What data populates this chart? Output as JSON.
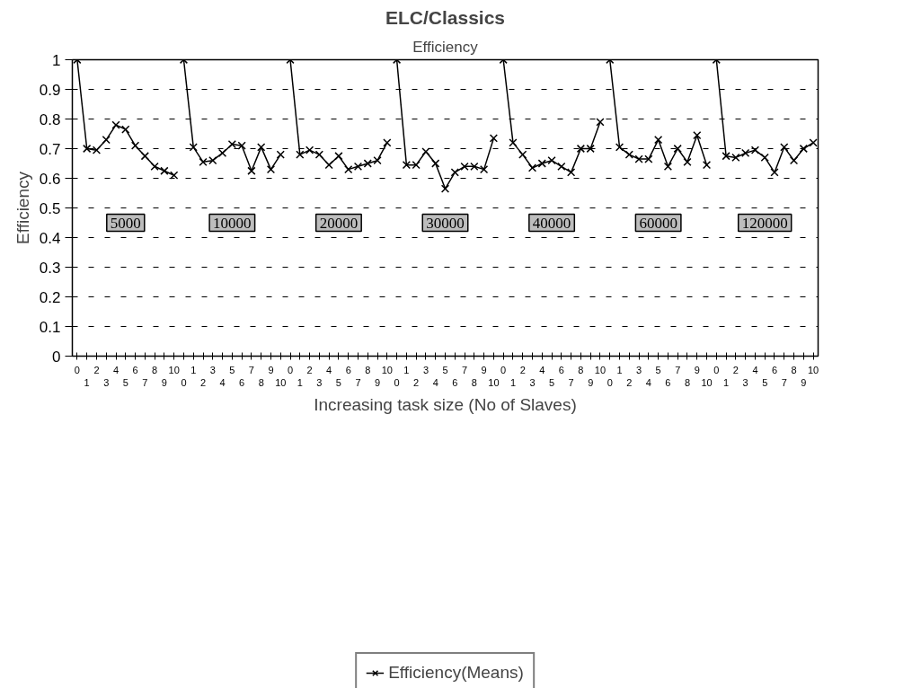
{
  "chart_data": {
    "type": "line",
    "title": "ELC/Classics",
    "subtitle": "Efficiency",
    "xlabel": "Increasing task size (No of Slaves)",
    "ylabel": "Efficiency",
    "categories": [
      "0",
      "1",
      "2",
      "3",
      "4",
      "5",
      "6",
      "7",
      "8",
      "9",
      "10",
      "0",
      "1",
      "2",
      "3",
      "4",
      "5",
      "6",
      "7",
      "8",
      "9",
      "10",
      "0",
      "1",
      "2",
      "3",
      "4",
      "5",
      "6",
      "7",
      "8",
      "9",
      "10",
      "0",
      "1",
      "2",
      "3",
      "4",
      "5",
      "6",
      "7",
      "8",
      "9",
      "10",
      "0",
      "1",
      "2",
      "3",
      "4",
      "5",
      "6",
      "7",
      "8",
      "9",
      "10",
      "0",
      "1",
      "2",
      "3",
      "4",
      "5",
      "6",
      "7",
      "8",
      "9",
      "10",
      "0",
      "1",
      "2",
      "3",
      "4",
      "5",
      "6",
      "7",
      "8",
      "9",
      "10"
    ],
    "series": [
      {
        "name": "Efficiency(Means)",
        "color": "#000000",
        "values": [
          1,
          0.7,
          0.695,
          0.73,
          0.78,
          0.765,
          0.71,
          0.675,
          0.64,
          0.625,
          0.61,
          null,
          null,
          null,
          null,
          null,
          null,
          null,
          null,
          null,
          null,
          null,
          null,
          null,
          null,
          null,
          null,
          null,
          null,
          null,
          null,
          null,
          null,
          null,
          null,
          null,
          null,
          null,
          null,
          null,
          null,
          null,
          null,
          null,
          null,
          null,
          null,
          null,
          null,
          null,
          null,
          null,
          null,
          null,
          null,
          null,
          null,
          null,
          null,
          null,
          null,
          null,
          null,
          null,
          null,
          null,
          null,
          null,
          null,
          null,
          null,
          null,
          null,
          null,
          null,
          null,
          null
        ]
      },
      {
        "color": "#000000",
        "values": [
          null,
          null,
          null,
          null,
          null,
          null,
          null,
          null,
          null,
          null,
          null,
          1,
          0.705,
          0.655,
          0.66,
          0.685,
          0.715,
          0.71,
          0.625,
          0.705,
          0.63,
          0.68,
          null,
          null,
          null,
          null,
          null,
          null,
          null,
          null,
          null,
          null,
          null,
          null,
          null,
          null,
          null,
          null,
          null,
          null,
          null,
          null,
          null,
          null,
          null,
          null,
          null,
          null,
          null,
          null,
          null,
          null,
          null,
          null,
          null,
          null,
          null,
          null,
          null,
          null,
          null,
          null,
          null,
          null,
          null,
          null,
          null,
          null,
          null,
          null,
          null,
          null,
          null,
          null,
          null,
          null,
          null
        ]
      },
      {
        "color": "#000000",
        "values": [
          null,
          null,
          null,
          null,
          null,
          null,
          null,
          null,
          null,
          null,
          null,
          null,
          null,
          null,
          null,
          null,
          null,
          null,
          null,
          null,
          null,
          null,
          1,
          0.68,
          0.695,
          0.68,
          0.645,
          0.675,
          0.63,
          0.64,
          0.65,
          0.66,
          0.72,
          null,
          null,
          null,
          null,
          null,
          null,
          null,
          null,
          null,
          null,
          null,
          null,
          null,
          null,
          null,
          null,
          null,
          null,
          null,
          null,
          null,
          null,
          null,
          null,
          null,
          null,
          null,
          null,
          null,
          null,
          null,
          null,
          null,
          null,
          null,
          null,
          null,
          null,
          null,
          null,
          null,
          null,
          null,
          null
        ]
      },
      {
        "color": "#000000",
        "values": [
          null,
          null,
          null,
          null,
          null,
          null,
          null,
          null,
          null,
          null,
          null,
          null,
          null,
          null,
          null,
          null,
          null,
          null,
          null,
          null,
          null,
          null,
          null,
          null,
          null,
          null,
          null,
          null,
          null,
          null,
          null,
          null,
          null,
          1,
          0.645,
          0.645,
          0.69,
          0.65,
          0.565,
          0.62,
          0.64,
          0.64,
          0.63,
          0.735,
          null,
          null,
          null,
          null,
          null,
          null,
          null,
          null,
          null,
          null,
          null,
          null,
          null,
          null,
          null,
          null,
          null,
          null,
          null,
          null,
          null,
          null,
          null,
          null,
          null,
          null,
          null,
          null,
          null,
          null,
          null,
          null,
          null
        ]
      },
      {
        "color": "#000000",
        "values": [
          null,
          null,
          null,
          null,
          null,
          null,
          null,
          null,
          null,
          null,
          null,
          null,
          null,
          null,
          null,
          null,
          null,
          null,
          null,
          null,
          null,
          null,
          null,
          null,
          null,
          null,
          null,
          null,
          null,
          null,
          null,
          null,
          null,
          null,
          null,
          null,
          null,
          null,
          null,
          null,
          null,
          null,
          null,
          null,
          1,
          0.72,
          0.68,
          0.635,
          0.65,
          0.66,
          0.64,
          0.62,
          0.7,
          0.7,
          0.79,
          null,
          null,
          null,
          null,
          null,
          null,
          null,
          null,
          null,
          null,
          null,
          null,
          null,
          null,
          null,
          null,
          null,
          null,
          null,
          null,
          null,
          null
        ]
      },
      {
        "color": "#000000",
        "values": [
          null,
          null,
          null,
          null,
          null,
          null,
          null,
          null,
          null,
          null,
          null,
          null,
          null,
          null,
          null,
          null,
          null,
          null,
          null,
          null,
          null,
          null,
          null,
          null,
          null,
          null,
          null,
          null,
          null,
          null,
          null,
          null,
          null,
          null,
          null,
          null,
          null,
          null,
          null,
          null,
          null,
          null,
          null,
          null,
          null,
          null,
          null,
          null,
          null,
          null,
          null,
          null,
          null,
          null,
          null,
          1,
          0.705,
          0.68,
          0.665,
          0.665,
          0.73,
          0.64,
          0.7,
          0.655,
          0.745,
          0.645,
          null,
          null,
          null,
          null,
          null,
          null,
          null,
          null,
          null,
          null,
          null
        ]
      },
      {
        "color": "#000000",
        "values": [
          null,
          null,
          null,
          null,
          null,
          null,
          null,
          null,
          null,
          null,
          null,
          null,
          null,
          null,
          null,
          null,
          null,
          null,
          null,
          null,
          null,
          null,
          null,
          null,
          null,
          null,
          null,
          null,
          null,
          null,
          null,
          null,
          null,
          null,
          null,
          null,
          null,
          null,
          null,
          null,
          null,
          null,
          null,
          null,
          null,
          null,
          null,
          null,
          null,
          null,
          null,
          null,
          null,
          null,
          null,
          null,
          null,
          null,
          null,
          null,
          null,
          null,
          null,
          null,
          null,
          null,
          1,
          0.675,
          0.67,
          0.685,
          0.695,
          0.67,
          0.62,
          0.705,
          0.66,
          0.7,
          0.72
        ]
      }
    ],
    "annotations": [
      "5000",
      "10000",
      "20000",
      "30000",
      "40000",
      "60000",
      "120000"
    ],
    "ylim": [
      0,
      1
    ],
    "yticks": [
      0,
      0.1,
      0.2,
      0.3,
      0.4,
      0.5,
      0.6,
      0.7,
      0.8,
      0.9,
      1
    ],
    "grid": "y",
    "legend": "bottom",
    "marker": "cross",
    "line_style": "solid"
  }
}
